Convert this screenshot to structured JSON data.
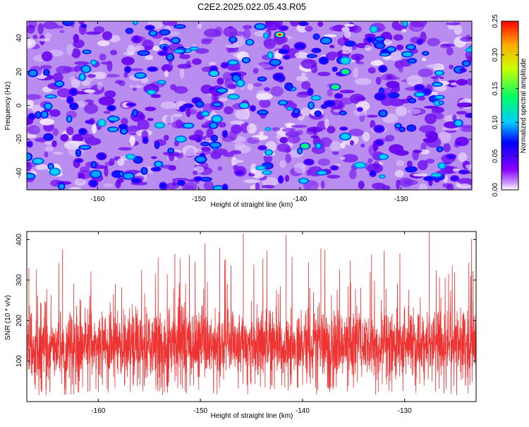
{
  "title": "C2E2.2025.022.05.43.R05",
  "chart_data": [
    {
      "type": "heatmap",
      "xlabel": "Height of straight line (km)",
      "ylabel": "Frequency (Hz)",
      "xlim": [
        -167,
        -123
      ],
      "ylim": [
        -50,
        50
      ],
      "xticks": [
        -160,
        -150,
        -140,
        -130
      ],
      "yticks": [
        -40,
        -20,
        0,
        20,
        40
      ],
      "colorbar": {
        "label": "Normalized spectral amplitude",
        "range": [
          0,
          0.25
        ],
        "ticks": [
          "0.00",
          "0.05",
          "0.10",
          "0.15",
          "0.20",
          "0.25"
        ],
        "colors": [
          "#ffffff",
          "#cc99ff",
          "#6600ff",
          "#0000ff",
          "#00ccff",
          "#00ff66",
          "#ccff00",
          "#ffaa00",
          "#ff0000"
        ]
      },
      "peaks": [
        {
          "x": -142,
          "y": 42,
          "value": 0.25
        },
        {
          "x": -135.5,
          "y": 20,
          "value": 0.15
        },
        {
          "x": -136.5,
          "y": 11,
          "value": 0.14
        },
        {
          "x": -139.5,
          "y": -24,
          "value": 0.16
        },
        {
          "x": -145.5,
          "y": 0,
          "value": 0.12
        },
        {
          "x": -148.5,
          "y": 19,
          "value": 0.11
        }
      ],
      "grid": false
    },
    {
      "type": "line",
      "xlabel": "Height of straight line (km)",
      "ylabel": "SNR (10 * v/v)",
      "xlim": [
        -167,
        -123
      ],
      "ylim": [
        0,
        420
      ],
      "xticks": [
        -160,
        -150,
        -140,
        -130
      ],
      "yticks": [
        100,
        200,
        300,
        400
      ],
      "series": [
        {
          "color": "#ee3333",
          "baseline": 140,
          "spread": 45,
          "spikes": [
            {
              "x": -145.8,
              "y": 415
            },
            {
              "x": -141.6,
              "y": 412
            },
            {
              "x": -127.6,
              "y": 418
            },
            {
              "x": -148.1,
              "y": 380
            },
            {
              "x": -163.5,
              "y": 375
            },
            {
              "x": -138.2,
              "y": 378
            },
            {
              "x": -132.0,
              "y": 372
            },
            {
              "x": -152.5,
              "y": 365
            },
            {
              "x": -166.8,
              "y": 330
            },
            {
              "x": -123.3,
              "y": 322
            }
          ]
        }
      ],
      "grid": false
    }
  ]
}
